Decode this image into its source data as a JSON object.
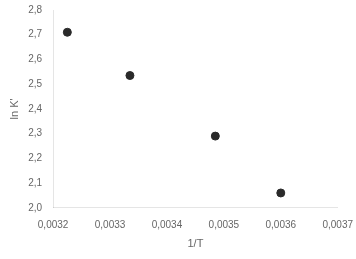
{
  "chart_data": {
    "type": "scatter",
    "x": [
      0.003225,
      0.003335,
      0.003485,
      0.0036
    ],
    "values": [
      2.71,
      2.535,
      2.29,
      2.06
    ],
    "color": "#2a2a2a",
    "xlabel": "1/T",
    "ylabel": "ln K'",
    "xlim": [
      0.0032,
      0.0037
    ],
    "ylim": [
      2.0,
      2.8
    ],
    "xticks": [
      {
        "value": 0.0032,
        "label": "0,0032"
      },
      {
        "value": 0.0033,
        "label": "0,0033"
      },
      {
        "value": 0.0034,
        "label": "0,0034"
      },
      {
        "value": 0.0035,
        "label": "0,0035"
      },
      {
        "value": 0.0036,
        "label": "0,0036"
      },
      {
        "value": 0.0037,
        "label": "0,0037"
      }
    ],
    "yticks": [
      {
        "value": 2.0,
        "label": "2,0"
      },
      {
        "value": 2.1,
        "label": "2,1"
      },
      {
        "value": 2.2,
        "label": "2,2"
      },
      {
        "value": 2.3,
        "label": "2,3"
      },
      {
        "value": 2.4,
        "label": "2,4"
      },
      {
        "value": 2.5,
        "label": "2,5"
      },
      {
        "value": 2.6,
        "label": "2,6"
      },
      {
        "value": 2.7,
        "label": "2,7"
      },
      {
        "value": 2.8,
        "label": "2,8"
      }
    ],
    "grid": false
  }
}
